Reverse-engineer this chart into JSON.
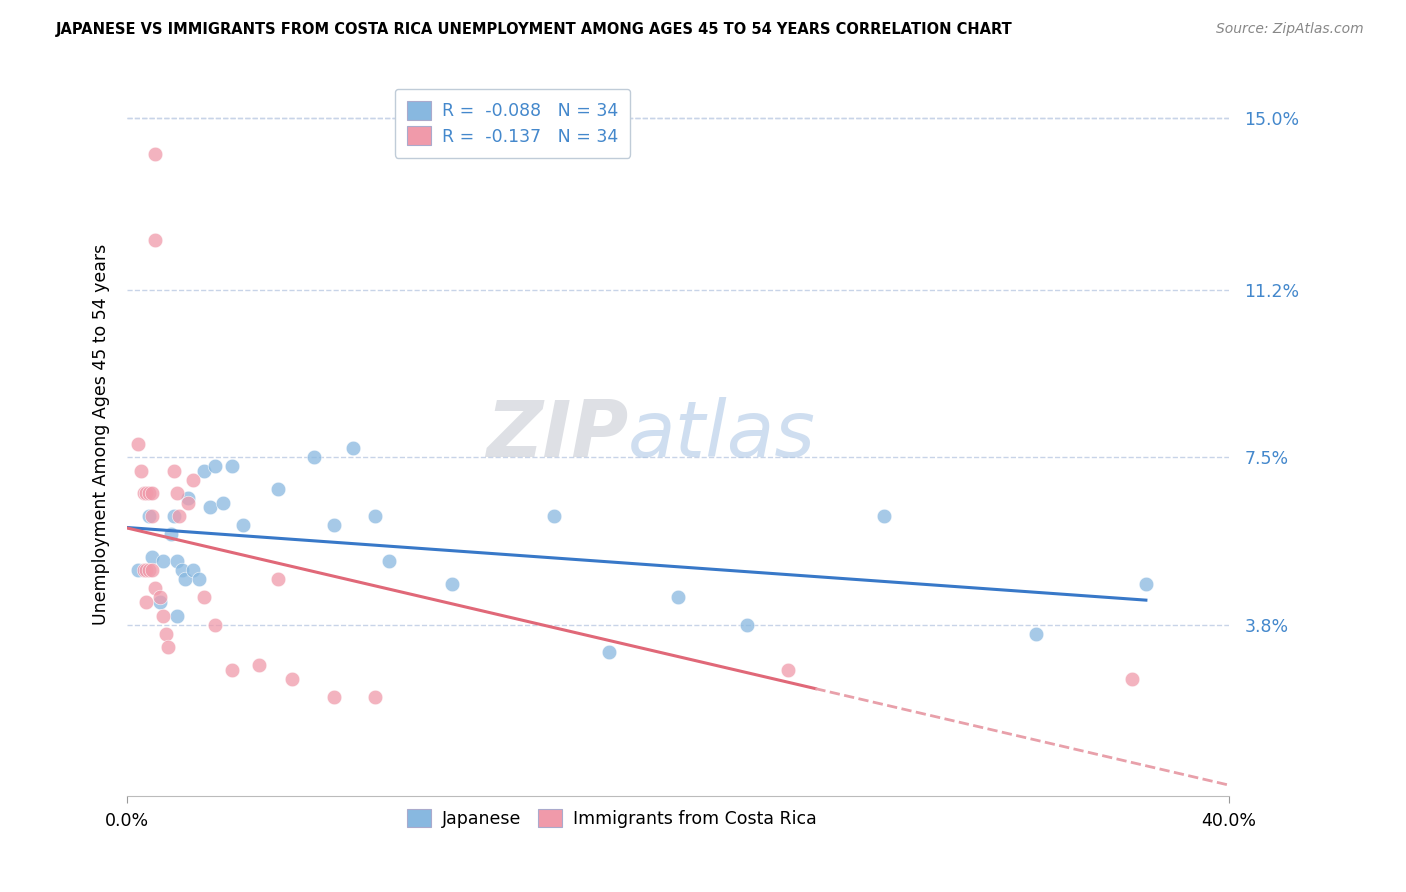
{
  "title": "JAPANESE VS IMMIGRANTS FROM COSTA RICA UNEMPLOYMENT AMONG AGES 45 TO 54 YEARS CORRELATION CHART",
  "source": "Source: ZipAtlas.com",
  "ylabel": "Unemployment Among Ages 45 to 54 years",
  "xlim": [
    0.0,
    0.4
  ],
  "ylim": [
    0.0,
    0.16
  ],
  "ytick_positions": [
    0.15,
    0.112,
    0.075,
    0.038
  ],
  "ytick_labels": [
    "15.0%",
    "11.2%",
    "7.5%",
    "3.8%"
  ],
  "xtick_positions": [
    0.0,
    0.4
  ],
  "xtick_labels": [
    "0.0%",
    "40.0%"
  ],
  "watermark_zip": "ZIP",
  "watermark_atlas": "atlas",
  "legend_label_j": "R =  -0.088   N = 34",
  "legend_label_cr": "R =  -0.137   N = 34",
  "bottom_label_j": "Japanese",
  "bottom_label_cr": "Immigrants from Costa Rica",
  "japanese_color": "#88b8e0",
  "cr_color": "#f09aaa",
  "trend_j_color": "#3878c8",
  "trend_cr_solid_color": "#e06878",
  "trend_cr_dash_color": "#e8a0aa",
  "background_color": "#ffffff",
  "grid_color": "#c8d4e8",
  "tick_color": "#4488cc",
  "japanese_x": [
    0.004,
    0.008,
    0.009,
    0.012,
    0.013,
    0.016,
    0.017,
    0.018,
    0.018,
    0.02,
    0.021,
    0.022,
    0.024,
    0.026,
    0.028,
    0.03,
    0.032,
    0.035,
    0.038,
    0.042,
    0.055,
    0.068,
    0.075,
    0.082,
    0.09,
    0.095,
    0.118,
    0.155,
    0.175,
    0.2,
    0.225,
    0.275,
    0.33,
    0.37
  ],
  "japanese_y": [
    0.05,
    0.062,
    0.053,
    0.043,
    0.052,
    0.058,
    0.062,
    0.04,
    0.052,
    0.05,
    0.048,
    0.066,
    0.05,
    0.048,
    0.072,
    0.064,
    0.073,
    0.065,
    0.073,
    0.06,
    0.068,
    0.075,
    0.06,
    0.077,
    0.062,
    0.052,
    0.047,
    0.062,
    0.032,
    0.044,
    0.038,
    0.062,
    0.036,
    0.047
  ],
  "cr_x": [
    0.004,
    0.005,
    0.006,
    0.006,
    0.007,
    0.007,
    0.007,
    0.008,
    0.008,
    0.009,
    0.009,
    0.009,
    0.01,
    0.01,
    0.01,
    0.012,
    0.013,
    0.014,
    0.015,
    0.017,
    0.018,
    0.019,
    0.022,
    0.024,
    0.028,
    0.032,
    0.038,
    0.048,
    0.055,
    0.06,
    0.075,
    0.09,
    0.24,
    0.365
  ],
  "cr_y": [
    0.078,
    0.072,
    0.067,
    0.05,
    0.067,
    0.05,
    0.043,
    0.067,
    0.05,
    0.067,
    0.062,
    0.05,
    0.046,
    0.123,
    0.142,
    0.044,
    0.04,
    0.036,
    0.033,
    0.072,
    0.067,
    0.062,
    0.065,
    0.07,
    0.044,
    0.038,
    0.028,
    0.029,
    0.048,
    0.026,
    0.022,
    0.022,
    0.028,
    0.026
  ],
  "fig_width": 14.06,
  "fig_height": 8.92
}
